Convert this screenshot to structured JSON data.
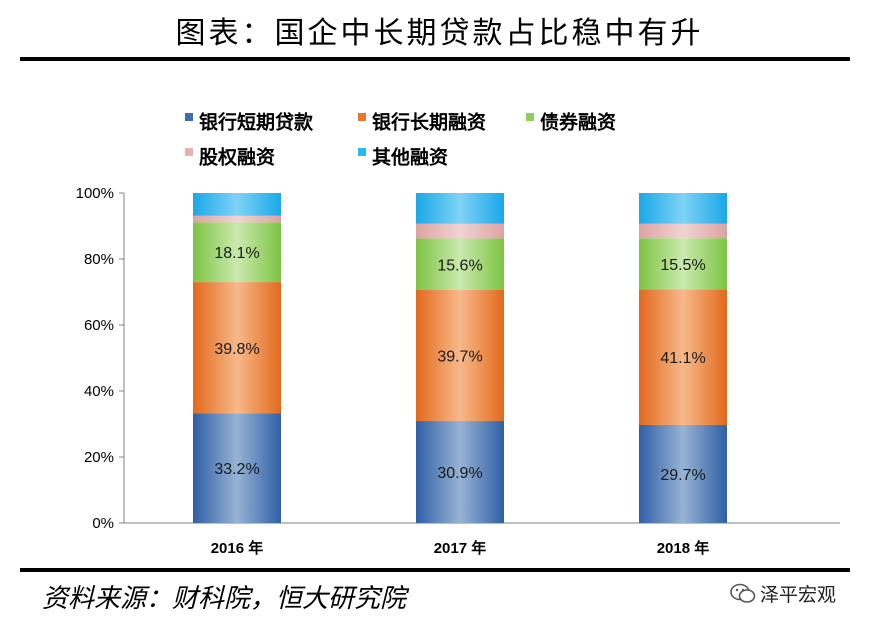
{
  "title": "图表：国企中长期贷款占比稳中有升",
  "source": "资料来源：财科院，恒大研究院",
  "watermark": "泽平宏观",
  "chart_data": {
    "type": "bar",
    "stacked": true,
    "categories": [
      "2016 年",
      "2017 年",
      "2018 年"
    ],
    "ylim": [
      0,
      100
    ],
    "yticks": [
      "0%",
      "20%",
      "40%",
      "60%",
      "80%",
      "100%"
    ],
    "legend_placement": "top",
    "series": [
      {
        "name": "银行短期贷款",
        "values": [
          33.2,
          30.9,
          29.7
        ],
        "color": "#3d6db0",
        "labels": [
          "33.2%",
          "30.9%",
          "29.7%"
        ]
      },
      {
        "name": "银行长期融资",
        "values": [
          39.8,
          39.7,
          41.1
        ],
        "color": "#e9772e",
        "labels": [
          "39.8%",
          "39.7%",
          "41.1%"
        ]
      },
      {
        "name": "债券融资",
        "values": [
          18.1,
          15.6,
          15.5
        ],
        "color": "#8fcf5a",
        "labels": [
          "18.1%",
          "15.6%",
          "15.5%"
        ]
      },
      {
        "name": "股权融资",
        "values": [
          2.0,
          4.5,
          4.4
        ],
        "color": "#e6b3b3",
        "labels": [
          "",
          "",
          ""
        ]
      },
      {
        "name": "其他融资",
        "values": [
          6.9,
          9.3,
          9.3
        ],
        "color": "#29b6ee",
        "labels": [
          "",
          "",
          ""
        ]
      }
    ]
  }
}
